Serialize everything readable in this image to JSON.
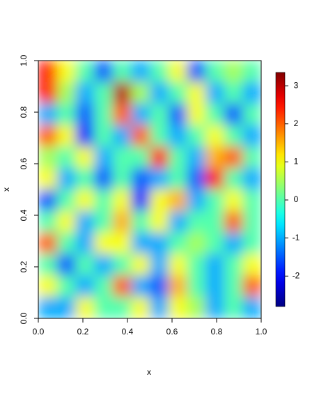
{
  "chart_data": {
    "type": "heatmap",
    "x_label": "x",
    "y_label": "x",
    "xlim": [
      0,
      1
    ],
    "ylim": [
      0,
      1
    ],
    "xticks": [
      {
        "value": 0,
        "label": "0.0"
      },
      {
        "value": 0.2,
        "label": "0.2"
      },
      {
        "value": 0.4,
        "label": "0.4"
      },
      {
        "value": 0.6,
        "label": "0.6"
      },
      {
        "value": 0.8,
        "label": "0.8"
      },
      {
        "value": 1,
        "label": "1.0"
      }
    ],
    "yticks": [
      {
        "value": 0,
        "label": "0.0"
      },
      {
        "value": 0.2,
        "label": "0.2"
      },
      {
        "value": 0.4,
        "label": "0.4"
      },
      {
        "value": 0.6,
        "label": "0.6"
      },
      {
        "value": 0.8,
        "label": "0.8"
      },
      {
        "value": 1,
        "label": "1.0"
      }
    ],
    "colormap": "jet",
    "zlim": [
      -2.8,
      3.35
    ],
    "zticks": [
      -2,
      -1,
      0,
      1,
      2,
      3
    ],
    "values": [
      [
        2.5,
        1,
        0,
        -1.5,
        0,
        -1,
        0,
        1,
        -1.5,
        0,
        0.5,
        0
      ],
      [
        2.5,
        0.5,
        -1,
        0,
        3,
        0.5,
        -1,
        0,
        1,
        -1,
        0,
        -1
      ],
      [
        -1,
        0,
        -1.5,
        0,
        2,
        -1,
        0,
        -1.5,
        1,
        0,
        -1.5,
        0
      ],
      [
        2,
        1,
        -2,
        0,
        -1,
        2,
        0,
        -1,
        0,
        1,
        0,
        -1
      ],
      [
        0.5,
        0,
        1,
        -1,
        0,
        0,
        2.5,
        0,
        -1,
        1.5,
        2,
        0
      ],
      [
        1,
        -1,
        0,
        -1.5,
        0,
        -1.5,
        -1,
        0,
        -1.5,
        2.5,
        0,
        -1
      ],
      [
        -1.5,
        0,
        1,
        0,
        1,
        -2,
        1,
        1.5,
        -1,
        0,
        1,
        0
      ],
      [
        0,
        1,
        -1,
        0,
        1.5,
        0,
        1,
        -1,
        0,
        0,
        2,
        0
      ],
      [
        2,
        0,
        -1,
        1,
        1,
        -1,
        -1,
        0,
        0.5,
        0,
        -1,
        0
      ],
      [
        0,
        -1.5,
        0,
        -1,
        0,
        1,
        -1,
        1,
        0,
        -1,
        0,
        1
      ],
      [
        1,
        0,
        -1,
        0,
        2,
        -1,
        -1.5,
        1.5,
        0,
        -1,
        0,
        2
      ],
      [
        -1,
        -1,
        1,
        0,
        0,
        1,
        -1,
        1,
        0.5,
        -1,
        0,
        -1
      ]
    ]
  }
}
